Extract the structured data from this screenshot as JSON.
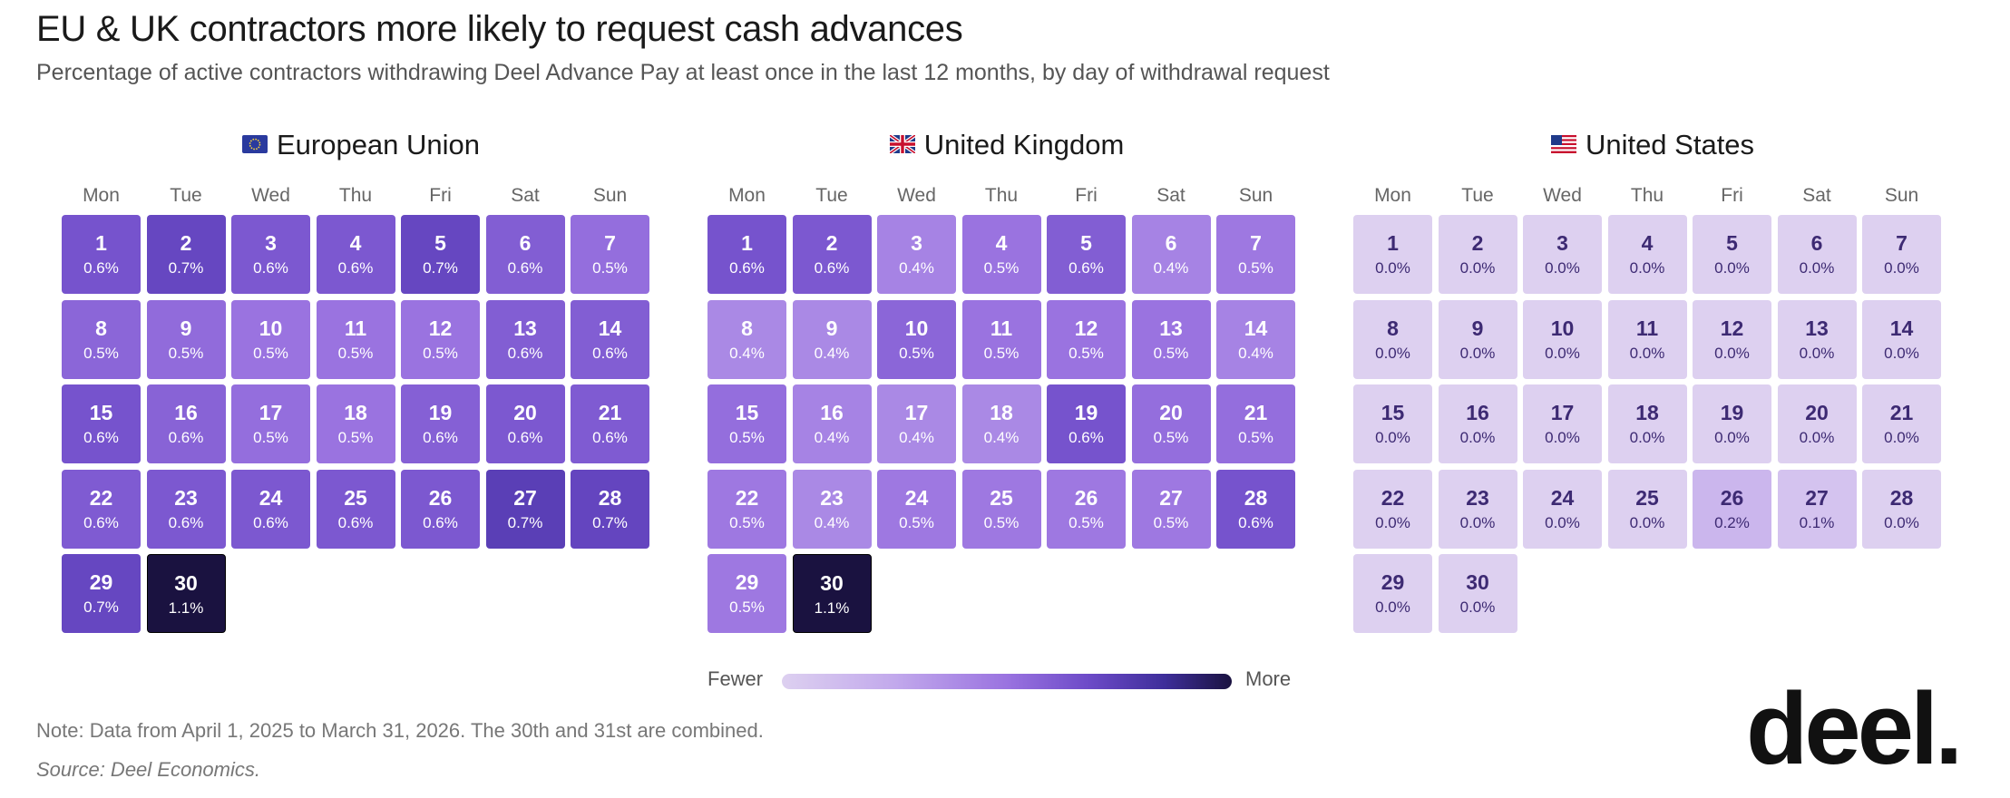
{
  "title": "EU & UK contractors more likely to request cash advances",
  "subtitle": "Percentage of active contractors withdrawing Deel Advance Pay at least once in the last 12 months, by day of withdrawal request",
  "weekdays": [
    "Mon",
    "Tue",
    "Wed",
    "Thu",
    "Fri",
    "Sat",
    "Sun"
  ],
  "legend": {
    "low_label": "Fewer",
    "high_label": "More"
  },
  "note": "Note: Data from April 1, 2025 to March 31, 2026. The 30th and 31st are combined.",
  "source": "Source: Deel Economics.",
  "logo": "deel.",
  "colors": {
    "scale": [
      "#ddd0f0",
      "#c2a9ec",
      "#9a73e0",
      "#6d4bc8",
      "#3e2e9a",
      "#1a1240"
    ],
    "text_dark": "#3d2a73",
    "text_light": "#ffffff"
  },
  "chart_data": [
    {
      "type": "heatmap",
      "title": "European Union",
      "flag_icon": "eu-flag-icon",
      "days": [
        1,
        2,
        3,
        4,
        5,
        6,
        7,
        8,
        9,
        10,
        11,
        12,
        13,
        14,
        15,
        16,
        17,
        18,
        19,
        20,
        21,
        22,
        23,
        24,
        25,
        26,
        27,
        28,
        29,
        30
      ],
      "values": [
        0.62,
        0.68,
        0.6,
        0.6,
        0.68,
        0.58,
        0.52,
        0.55,
        0.53,
        0.5,
        0.5,
        0.5,
        0.58,
        0.58,
        0.62,
        0.56,
        0.52,
        0.5,
        0.57,
        0.6,
        0.59,
        0.59,
        0.6,
        0.6,
        0.6,
        0.6,
        0.73,
        0.69,
        0.68,
        1.1
      ],
      "labels": [
        "0.6%",
        "0.7%",
        "0.6%",
        "0.6%",
        "0.7%",
        "0.6%",
        "0.5%",
        "0.5%",
        "0.5%",
        "0.5%",
        "0.5%",
        "0.5%",
        "0.6%",
        "0.6%",
        "0.6%",
        "0.6%",
        "0.5%",
        "0.5%",
        "0.6%",
        "0.6%",
        "0.6%",
        "0.6%",
        "0.6%",
        "0.6%",
        "0.6%",
        "0.6%",
        "0.7%",
        "0.7%",
        "0.7%",
        "1.1%"
      ]
    },
    {
      "type": "heatmap",
      "title": "United Kingdom",
      "flag_icon": "uk-flag-icon",
      "days": [
        1,
        2,
        3,
        4,
        5,
        6,
        7,
        8,
        9,
        10,
        11,
        12,
        13,
        14,
        15,
        16,
        17,
        18,
        19,
        20,
        21,
        22,
        23,
        24,
        25,
        26,
        27,
        28,
        29,
        30
      ],
      "values": [
        0.62,
        0.6,
        0.44,
        0.5,
        0.58,
        0.44,
        0.48,
        0.42,
        0.42,
        0.55,
        0.5,
        0.5,
        0.5,
        0.44,
        0.52,
        0.44,
        0.42,
        0.42,
        0.62,
        0.52,
        0.52,
        0.48,
        0.42,
        0.48,
        0.48,
        0.48,
        0.48,
        0.62,
        0.48,
        1.1
      ],
      "labels": [
        "0.6%",
        "0.6%",
        "0.4%",
        "0.5%",
        "0.6%",
        "0.4%",
        "0.5%",
        "0.4%",
        "0.4%",
        "0.5%",
        "0.5%",
        "0.5%",
        "0.5%",
        "0.4%",
        "0.5%",
        "0.4%",
        "0.4%",
        "0.4%",
        "0.6%",
        "0.5%",
        "0.5%",
        "0.5%",
        "0.4%",
        "0.5%",
        "0.5%",
        "0.5%",
        "0.5%",
        "0.6%",
        "0.5%",
        "1.1%"
      ]
    },
    {
      "type": "heatmap",
      "title": "United States",
      "flag_icon": "us-flag-icon",
      "days": [
        1,
        2,
        3,
        4,
        5,
        6,
        7,
        8,
        9,
        10,
        11,
        12,
        13,
        14,
        15,
        16,
        17,
        18,
        19,
        20,
        21,
        22,
        23,
        24,
        25,
        26,
        27,
        28,
        29,
        30
      ],
      "values": [
        0,
        0,
        0,
        0,
        0,
        0,
        0,
        0,
        0,
        0,
        0,
        0,
        0,
        0,
        0,
        0,
        0,
        0,
        0,
        0,
        0,
        0,
        0,
        0,
        0,
        0.2,
        0.1,
        0,
        0,
        0
      ],
      "labels": [
        "0.0%",
        "0.0%",
        "0.0%",
        "0.0%",
        "0.0%",
        "0.0%",
        "0.0%",
        "0.0%",
        "0.0%",
        "0.0%",
        "0.0%",
        "0.0%",
        "0.0%",
        "0.0%",
        "0.0%",
        "0.0%",
        "0.0%",
        "0.0%",
        "0.0%",
        "0.0%",
        "0.0%",
        "0.0%",
        "0.0%",
        "0.0%",
        "0.0%",
        "0.2%",
        "0.1%",
        "0.0%",
        "0.0%",
        "0.0%"
      ]
    }
  ]
}
